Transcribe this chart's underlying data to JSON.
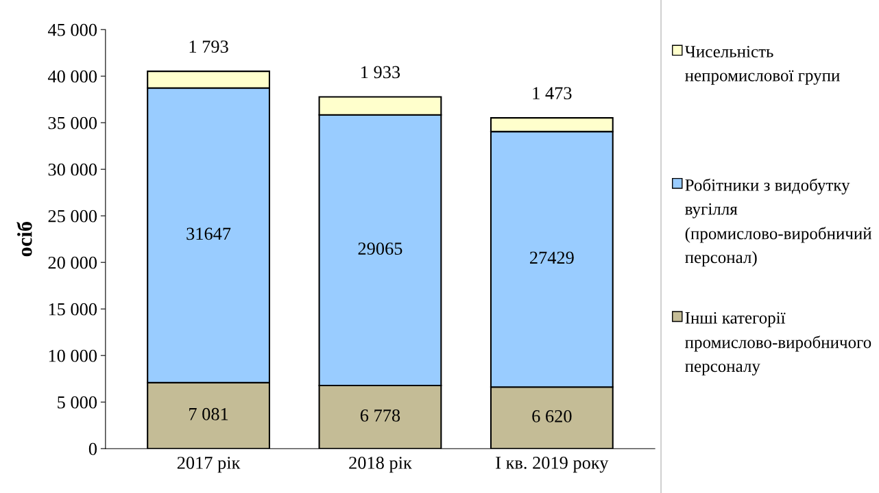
{
  "chart_data": {
    "type": "bar",
    "stacked": true,
    "ylabel": "осіб",
    "categories": [
      "2017 рік",
      "2018 рік",
      "I кв. 2019 року"
    ],
    "series": [
      {
        "name": "Інші категорії промислово-виробничого персоналу",
        "color": "#c4bc96",
        "values": [
          7081,
          6778,
          6620
        ],
        "value_labels": [
          "7 081",
          "6 778",
          "6 620"
        ]
      },
      {
        "name": "Робітники з видобутку вугілля (промислово-виробничий персонал)",
        "color": "#99ccff",
        "values": [
          31647,
          29065,
          27429
        ],
        "value_labels": [
          "31647",
          "29065",
          "27429"
        ]
      },
      {
        "name": "Чисельність непромислової групи",
        "color": "#ffffcc",
        "values": [
          1793,
          1933,
          1473
        ],
        "value_labels": [
          "1 793",
          "1 933",
          "1 473"
        ]
      }
    ],
    "ylim": [
      0,
      45000
    ],
    "yticks": [
      0,
      {
        "value": 5000,
        "label": "5 000"
      },
      {
        "value": 10000,
        "label": "10 000"
      },
      {
        "value": 15000,
        "label": "15 000"
      },
      {
        "value": 20000,
        "label": "20 000"
      },
      {
        "value": 25000,
        "label": "25 000"
      },
      {
        "value": 30000,
        "label": "30 000"
      },
      {
        "value": 35000,
        "label": "35 000"
      },
      {
        "value": 40000,
        "label": "40 000"
      },
      {
        "value": 45000,
        "label": "45 000"
      }
    ],
    "grid": false,
    "legend": "right"
  }
}
